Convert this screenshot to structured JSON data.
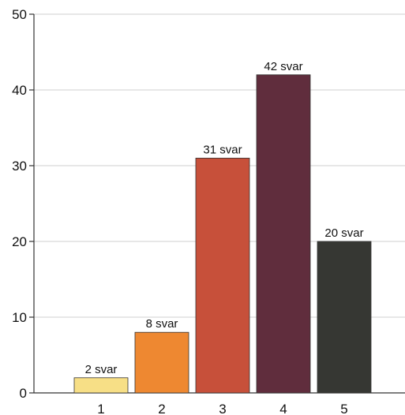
{
  "chart_data": {
    "type": "bar",
    "categories": [
      "1",
      "2",
      "3",
      "4",
      "5"
    ],
    "values": [
      2,
      8,
      31,
      42,
      20
    ],
    "data_labels": [
      "2 svar",
      "8 svar",
      "31 svar",
      "42 svar",
      "20 svar"
    ],
    "colors": [
      "#F7DF86",
      "#EE8831",
      "#C7503A",
      "#602D3D",
      "#363733"
    ],
    "title": "",
    "xlabel": "",
    "ylabel": "",
    "ylim": [
      0,
      50
    ],
    "yticks": [
      "0",
      "10",
      "20",
      "30",
      "40",
      "50"
    ],
    "grid": true
  }
}
